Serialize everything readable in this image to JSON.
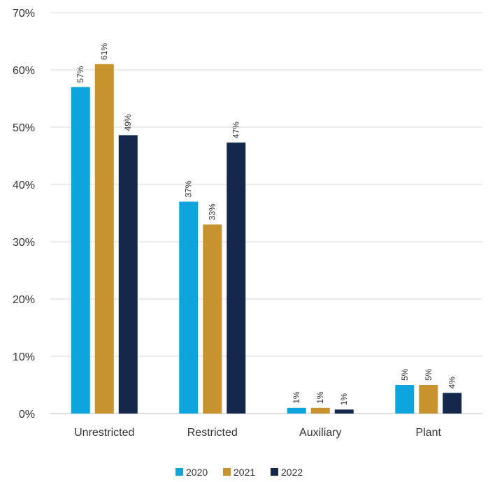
{
  "chart_data": {
    "type": "bar",
    "categories": [
      "Unrestricted",
      "Restricted",
      "Auxiliary",
      "Plant"
    ],
    "series": [
      {
        "name": "2020",
        "values": [
          57,
          37,
          1,
          5
        ],
        "labels": [
          "57%",
          "37%",
          "1%",
          "5%"
        ],
        "color": "#0ea5dd"
      },
      {
        "name": "2021",
        "values": [
          61,
          33,
          1,
          5
        ],
        "labels": [
          "61%",
          "33%",
          "1%",
          "5%"
        ],
        "color": "#c8922e"
      },
      {
        "name": "2022",
        "values": [
          48.6,
          47.3,
          0.7,
          3.6
        ],
        "labels": [
          "49%",
          "47%",
          "1%",
          "4%"
        ],
        "color": "#14284b"
      }
    ],
    "y_ticks": [
      "0%",
      "10%",
      "20%",
      "30%",
      "40%",
      "50%",
      "60%",
      "70%"
    ],
    "ylim": [
      0,
      70
    ],
    "grid": true,
    "legend": "bottom-center",
    "title": "",
    "xlabel": "",
    "ylabel": ""
  }
}
